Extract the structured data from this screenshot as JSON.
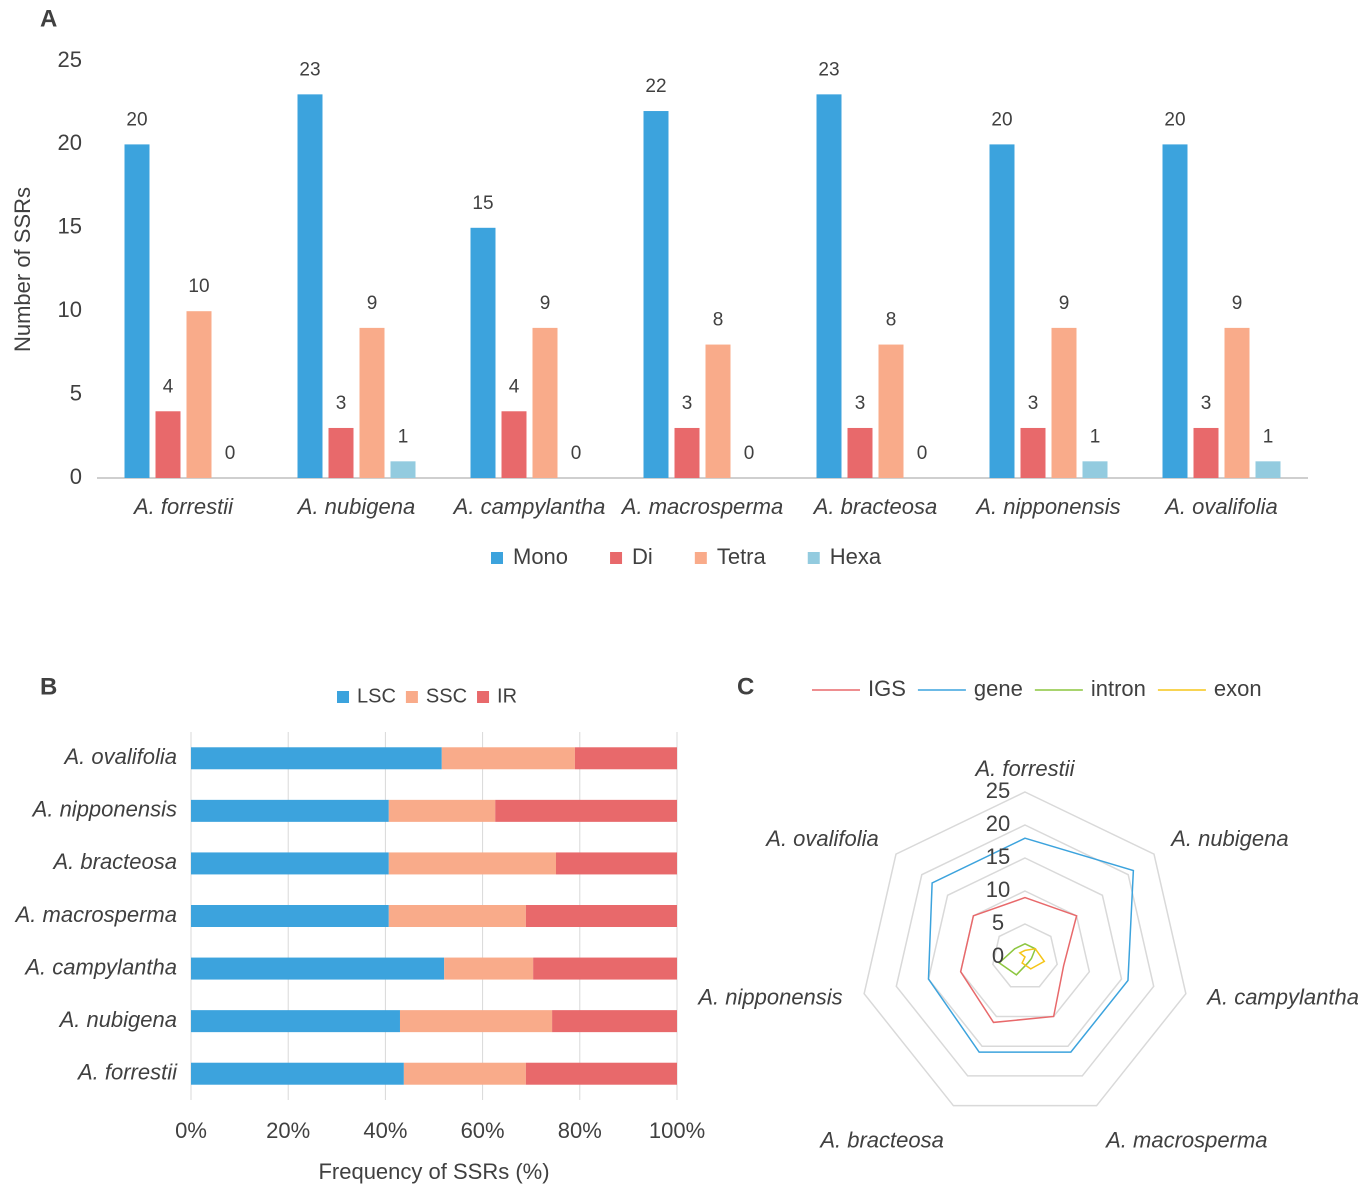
{
  "chart_data": [
    {
      "type": "bar",
      "label": "A",
      "ylabel": "Number of SSRs",
      "categories": [
        "A. forrestii",
        "A. nubigena",
        "A. campylantha",
        "A. macrosperma",
        "A. bracteosa",
        "A. nipponensis",
        "A. ovalifolia"
      ],
      "series": [
        {
          "name": "Mono",
          "color": "#3ca3dd",
          "values": [
            20,
            23,
            15,
            22,
            23,
            20,
            20
          ]
        },
        {
          "name": "Di",
          "color": "#e8696b",
          "values": [
            4,
            3,
            4,
            3,
            3,
            3,
            3
          ]
        },
        {
          "name": "Tetra",
          "color": "#f9ab8a",
          "values": [
            10,
            9,
            9,
            8,
            8,
            9,
            9
          ]
        },
        {
          "name": "Hexa",
          "color": "#93cbdf",
          "values": [
            0,
            1,
            0,
            0,
            0,
            1,
            1
          ]
        }
      ],
      "ylim": [
        0,
        25
      ],
      "yticks": [
        0,
        5,
        10,
        15,
        20,
        25
      ],
      "legend": "bottom",
      "grid": false
    },
    {
      "type": "stacked_barh",
      "label": "B",
      "xlabel": "Frequency of SSRs (%)",
      "categories": [
        "A. forrestii",
        "A. nubigena",
        "A. campylantha",
        "A. macrosperma",
        "A. bracteosa",
        "A. nipponensis",
        "A. ovalifolia"
      ],
      "series": [
        {
          "name": "LSC",
          "color": "#3ca3dd",
          "values": [
            43.8,
            43.0,
            52.1,
            40.7,
            40.7,
            40.7,
            51.6
          ]
        },
        {
          "name": "SSC",
          "color": "#f9ab8a",
          "values": [
            25.1,
            31.3,
            18.3,
            28.2,
            34.4,
            21.9,
            27.4
          ]
        },
        {
          "name": "IR",
          "color": "#e8696b",
          "values": [
            31.1,
            25.7,
            29.6,
            31.1,
            24.9,
            37.4,
            21.0
          ]
        }
      ],
      "xlim": [
        0,
        100
      ],
      "xticks": [
        {
          "value": 0,
          "label": "0%"
        },
        {
          "value": 20,
          "label": "20%"
        },
        {
          "value": 40,
          "label": "40%"
        },
        {
          "value": 60,
          "label": "60%"
        },
        {
          "value": 80,
          "label": "80%"
        },
        {
          "value": 100,
          "label": "100%"
        }
      ],
      "legend": "top",
      "grid": true
    },
    {
      "type": "radar",
      "label": "C",
      "categories": [
        "A. forrestii",
        "A. nubigena",
        "A. campylantha",
        "A. macrosperma",
        "A. bracteosa",
        "A. nipponensis",
        "A. ovalifolia"
      ],
      "series": [
        {
          "name": "IGS",
          "color": "#e8696b",
          "values": [
            9,
            10,
            6,
            10,
            11,
            10,
            10
          ]
        },
        {
          "name": "gene",
          "color": "#3ca3dd",
          "values": [
            18,
            21,
            16,
            16,
            16,
            15,
            18
          ]
        },
        {
          "name": "intron",
          "color": "#8cc63f",
          "values": [
            2,
            2,
            1,
            1,
            3,
            4,
            2
          ]
        },
        {
          "name": "exon",
          "color": "#f5c518",
          "values": [
            1,
            2,
            3,
            2,
            1,
            0,
            1
          ]
        }
      ],
      "rlim": [
        0,
        25
      ],
      "rticks": [
        0,
        5,
        10,
        15,
        20,
        25
      ],
      "legend": "top",
      "grid": true
    }
  ]
}
